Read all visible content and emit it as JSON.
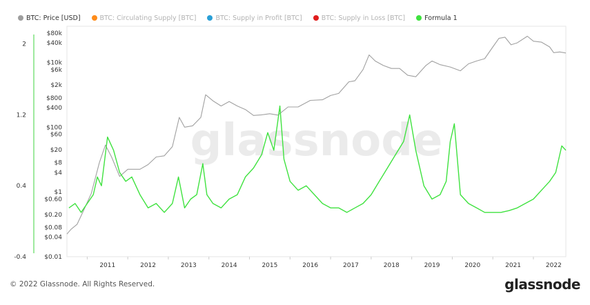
{
  "legend": [
    {
      "label": "BTC: Price [USD]",
      "color": "#9e9e9e",
      "active": true
    },
    {
      "label": "BTC: Circulating Supply [BTC]",
      "color": "#ff8c1a",
      "active": false
    },
    {
      "label": "BTC: Supply in Profit [BTC]",
      "color": "#2a9fd6",
      "active": false
    },
    {
      "label": "BTC: Supply in Loss [BTC]",
      "color": "#e01d1d",
      "active": false
    },
    {
      "label": "Formula 1",
      "color": "#3fe23f",
      "active": true
    }
  ],
  "watermark": "glassnode",
  "footer": {
    "copyright": "© 2022 Glassnode. All Rights Reserved.",
    "logo": "glassnode"
  },
  "chart_data": {
    "type": "line",
    "xlabels": [
      "2011",
      "2012",
      "2013",
      "2014",
      "2015",
      "2016",
      "2017",
      "2018",
      "2019",
      "2020",
      "2021",
      "2022"
    ],
    "xlim": [
      2010.5,
      2022.8
    ],
    "left_axis": {
      "ticks": [
        "2",
        "1.2",
        "0.4",
        "-0.4"
      ],
      "values": [
        2,
        1.2,
        0.4,
        -0.4
      ],
      "ylim": [
        -0.4,
        2.2
      ]
    },
    "price_axis": {
      "scale": "log",
      "ticks": [
        "$80k",
        "$40k",
        "$10k",
        "$6k",
        "$2k",
        "$800",
        "$400",
        "$100",
        "$60",
        "$20",
        "$8",
        "$4",
        "$1",
        "$0.60",
        "$0.20",
        "$0.08",
        "$0.04",
        "$0.01"
      ],
      "values": [
        80000,
        40000,
        10000,
        6000,
        2000,
        800,
        400,
        100,
        60,
        20,
        8,
        4,
        1,
        0.6,
        0.2,
        0.08,
        0.04,
        0.01
      ],
      "ylim": [
        0.01,
        80000
      ]
    },
    "series": [
      {
        "name": "BTC: Price [USD]",
        "color": "#a0a0a0",
        "axis": "price",
        "points": [
          [
            2010.5,
            0.05
          ],
          [
            2010.6,
            0.07
          ],
          [
            2010.75,
            0.1
          ],
          [
            2010.9,
            0.25
          ],
          [
            2011.1,
            0.9
          ],
          [
            2011.3,
            8
          ],
          [
            2011.45,
            28
          ],
          [
            2011.6,
            12
          ],
          [
            2011.8,
            3
          ],
          [
            2012.0,
            5
          ],
          [
            2012.3,
            5
          ],
          [
            2012.5,
            7
          ],
          [
            2012.7,
            12
          ],
          [
            2012.9,
            13
          ],
          [
            2013.1,
            25
          ],
          [
            2013.27,
            200
          ],
          [
            2013.4,
            100
          ],
          [
            2013.6,
            110
          ],
          [
            2013.8,
            200
          ],
          [
            2013.92,
            1000
          ],
          [
            2014.1,
            650
          ],
          [
            2014.3,
            450
          ],
          [
            2014.5,
            620
          ],
          [
            2014.7,
            450
          ],
          [
            2014.9,
            350
          ],
          [
            2015.1,
            230
          ],
          [
            2015.3,
            240
          ],
          [
            2015.5,
            260
          ],
          [
            2015.7,
            235
          ],
          [
            2015.95,
            420
          ],
          [
            2016.2,
            420
          ],
          [
            2016.5,
            670
          ],
          [
            2016.8,
            700
          ],
          [
            2017.0,
            950
          ],
          [
            2017.2,
            1100
          ],
          [
            2017.45,
            2500
          ],
          [
            2017.6,
            2700
          ],
          [
            2017.8,
            6000
          ],
          [
            2017.95,
            17000
          ],
          [
            2018.1,
            11000
          ],
          [
            2018.3,
            8000
          ],
          [
            2018.5,
            6500
          ],
          [
            2018.7,
            6500
          ],
          [
            2018.9,
            4000
          ],
          [
            2019.1,
            3600
          ],
          [
            2019.35,
            8000
          ],
          [
            2019.5,
            11000
          ],
          [
            2019.7,
            8500
          ],
          [
            2019.95,
            7200
          ],
          [
            2020.2,
            5500
          ],
          [
            2020.4,
            9000
          ],
          [
            2020.6,
            11000
          ],
          [
            2020.8,
            13000
          ],
          [
            2021.0,
            30000
          ],
          [
            2021.15,
            55000
          ],
          [
            2021.3,
            60000
          ],
          [
            2021.45,
            35000
          ],
          [
            2021.6,
            40000
          ],
          [
            2021.85,
            64000
          ],
          [
            2022.0,
            45000
          ],
          [
            2022.2,
            42000
          ],
          [
            2022.4,
            30000
          ],
          [
            2022.5,
            20000
          ],
          [
            2022.65,
            21000
          ],
          [
            2022.8,
            19500
          ]
        ]
      },
      {
        "name": "Formula 1",
        "color": "#3fe23f",
        "axis": "left",
        "points": [
          [
            2010.55,
            0.15
          ],
          [
            2010.7,
            0.2
          ],
          [
            2010.85,
            0.1
          ],
          [
            2011.0,
            0.2
          ],
          [
            2011.15,
            0.3
          ],
          [
            2011.25,
            0.5
          ],
          [
            2011.35,
            0.4
          ],
          [
            2011.5,
            0.95
          ],
          [
            2011.65,
            0.8
          ],
          [
            2011.8,
            0.55
          ],
          [
            2011.95,
            0.45
          ],
          [
            2012.1,
            0.5
          ],
          [
            2012.3,
            0.3
          ],
          [
            2012.5,
            0.15
          ],
          [
            2012.7,
            0.2
          ],
          [
            2012.9,
            0.1
          ],
          [
            2013.1,
            0.2
          ],
          [
            2013.25,
            0.5
          ],
          [
            2013.4,
            0.15
          ],
          [
            2013.55,
            0.25
          ],
          [
            2013.7,
            0.3
          ],
          [
            2013.85,
            0.65
          ],
          [
            2013.95,
            0.3
          ],
          [
            2014.1,
            0.2
          ],
          [
            2014.3,
            0.15
          ],
          [
            2014.5,
            0.25
          ],
          [
            2014.7,
            0.3
          ],
          [
            2014.9,
            0.5
          ],
          [
            2015.1,
            0.6
          ],
          [
            2015.3,
            0.75
          ],
          [
            2015.45,
            1.0
          ],
          [
            2015.6,
            0.8
          ],
          [
            2015.75,
            1.3
          ],
          [
            2015.85,
            0.7
          ],
          [
            2016.0,
            0.45
          ],
          [
            2016.2,
            0.35
          ],
          [
            2016.4,
            0.4
          ],
          [
            2016.6,
            0.3
          ],
          [
            2016.8,
            0.2
          ],
          [
            2017.0,
            0.15
          ],
          [
            2017.2,
            0.15
          ],
          [
            2017.4,
            0.1
          ],
          [
            2017.6,
            0.15
          ],
          [
            2017.8,
            0.2
          ],
          [
            2018.0,
            0.3
          ],
          [
            2018.2,
            0.45
          ],
          [
            2018.4,
            0.6
          ],
          [
            2018.6,
            0.75
          ],
          [
            2018.8,
            0.9
          ],
          [
            2018.95,
            1.2
          ],
          [
            2019.1,
            0.8
          ],
          [
            2019.3,
            0.4
          ],
          [
            2019.5,
            0.25
          ],
          [
            2019.7,
            0.3
          ],
          [
            2019.85,
            0.45
          ],
          [
            2019.95,
            0.9
          ],
          [
            2020.05,
            1.1
          ],
          [
            2020.2,
            0.3
          ],
          [
            2020.4,
            0.2
          ],
          [
            2020.6,
            0.15
          ],
          [
            2020.8,
            0.1
          ],
          [
            2021.0,
            0.1
          ],
          [
            2021.2,
            0.1
          ],
          [
            2021.4,
            0.12
          ],
          [
            2021.6,
            0.15
          ],
          [
            2021.8,
            0.2
          ],
          [
            2022.0,
            0.25
          ],
          [
            2022.2,
            0.35
          ],
          [
            2022.4,
            0.45
          ],
          [
            2022.55,
            0.55
          ],
          [
            2022.7,
            0.85
          ],
          [
            2022.8,
            0.8
          ]
        ]
      }
    ]
  }
}
